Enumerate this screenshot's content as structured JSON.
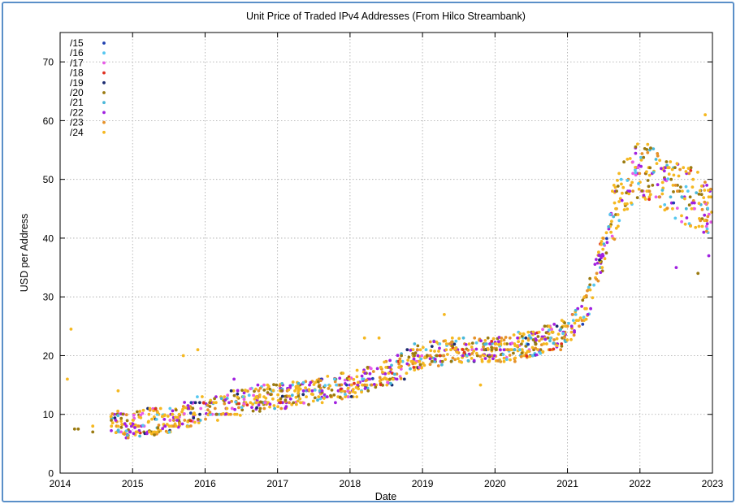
{
  "chart_data": {
    "type": "scatter",
    "title": "Unit Price of Traded IPv4 Addresses (From Hilco Streambank)",
    "xlabel": "Date",
    "ylabel": "USD per Address",
    "xlim": [
      2014,
      2023
    ],
    "ylim": [
      0,
      75
    ],
    "x_ticks": [
      "2014",
      "2015",
      "2016",
      "2017",
      "2018",
      "2019",
      "2020",
      "2021",
      "2022",
      "2023"
    ],
    "y_ticks": [
      "0",
      "10",
      "20",
      "30",
      "40",
      "50",
      "60",
      "70"
    ],
    "grid": true,
    "legend_position": "top-left",
    "series": [
      {
        "name": "/15",
        "color": "#1f3fb0"
      },
      {
        "name": "/16",
        "color": "#56c8f0"
      },
      {
        "name": "/17",
        "color": "#e85ce8"
      },
      {
        "name": "/18",
        "color": "#e03020"
      },
      {
        "name": "/19",
        "color": "#1a2a70"
      },
      {
        "name": "/20",
        "color": "#9a7a10"
      },
      {
        "name": "/21",
        "color": "#49b8d8"
      },
      {
        "name": "/22",
        "color": "#a020e0"
      },
      {
        "name": "/23",
        "color": "#e6922a"
      },
      {
        "name": "/24",
        "color": "#f5b820"
      }
    ],
    "trend": [
      [
        2014.1,
        8
      ],
      [
        2015.0,
        8.5
      ],
      [
        2015.5,
        9
      ],
      [
        2016.0,
        11
      ],
      [
        2016.5,
        12
      ],
      [
        2017.0,
        13
      ],
      [
        2017.5,
        14
      ],
      [
        2018.0,
        15
      ],
      [
        2018.5,
        17
      ],
      [
        2019.0,
        20
      ],
      [
        2019.5,
        21
      ],
      [
        2020.0,
        21
      ],
      [
        2020.5,
        22
      ],
      [
        2021.0,
        24
      ],
      [
        2021.25,
        28
      ],
      [
        2021.5,
        38
      ],
      [
        2021.75,
        49
      ],
      [
        2022.0,
        52
      ],
      [
        2022.5,
        48
      ],
      [
        2023.0,
        45
      ]
    ],
    "outliers": [
      [
        2014.1,
        16
      ],
      [
        2014.15,
        24.5
      ],
      [
        2014.2,
        7.5
      ],
      [
        2014.25,
        7.5
      ],
      [
        2014.45,
        7
      ],
      [
        2014.45,
        8
      ],
      [
        2014.8,
        14
      ],
      [
        2015.1,
        6.3
      ],
      [
        2015.3,
        6.5
      ],
      [
        2015.7,
        20
      ],
      [
        2015.9,
        21
      ],
      [
        2016.4,
        16
      ],
      [
        2018.2,
        23
      ],
      [
        2018.4,
        23
      ],
      [
        2019.3,
        27
      ],
      [
        2019.8,
        15
      ],
      [
        2022.5,
        35
      ],
      [
        2022.8,
        34
      ],
      [
        2022.9,
        61
      ],
      [
        2022.95,
        37
      ]
    ]
  }
}
